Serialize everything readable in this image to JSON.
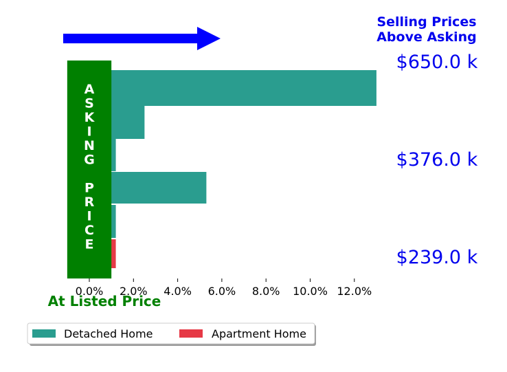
{
  "chart_data": {
    "type": "bar",
    "orientation": "horizontal",
    "title": "",
    "xlabel": "",
    "ylabel": "",
    "xlim": [
      -1.1,
      13.0
    ],
    "x_ticks": [
      0,
      2,
      4,
      6,
      8,
      10,
      12
    ],
    "x_tick_labels": [
      "0.0%",
      "2.0%",
      "4.0%",
      "6.0%",
      "8.0%",
      "10.0%",
      "12.0%"
    ],
    "bars": [
      {
        "series": "Detached Home",
        "value": 13.0
      },
      {
        "series": "Detached Home",
        "value": 2.5
      },
      {
        "series": "Detached Home",
        "value": 1.2
      },
      {
        "series": "Detached Home",
        "value": 5.3
      },
      {
        "series": "Detached Home",
        "value": 1.2
      },
      {
        "series": "Apartment Home",
        "value": 1.2
      }
    ],
    "series": [
      {
        "name": "Detached Home",
        "color": "#2a9d8f"
      },
      {
        "name": "Apartment Home",
        "color": "#e63946"
      }
    ],
    "price_labels": [
      "$650.0 k",
      "$376.0 k",
      "$239.0 k"
    ],
    "asking_band": {
      "from": -1.0,
      "to": 1.0,
      "color": "#008000",
      "label": "ASKING PRICE"
    },
    "arrow_color": "#0000ff",
    "annotations": {
      "above": [
        "Selling Prices",
        "Above Asking"
      ],
      "below": "At Listed Price"
    },
    "legend_position": "bottom-left",
    "grid": false
  }
}
